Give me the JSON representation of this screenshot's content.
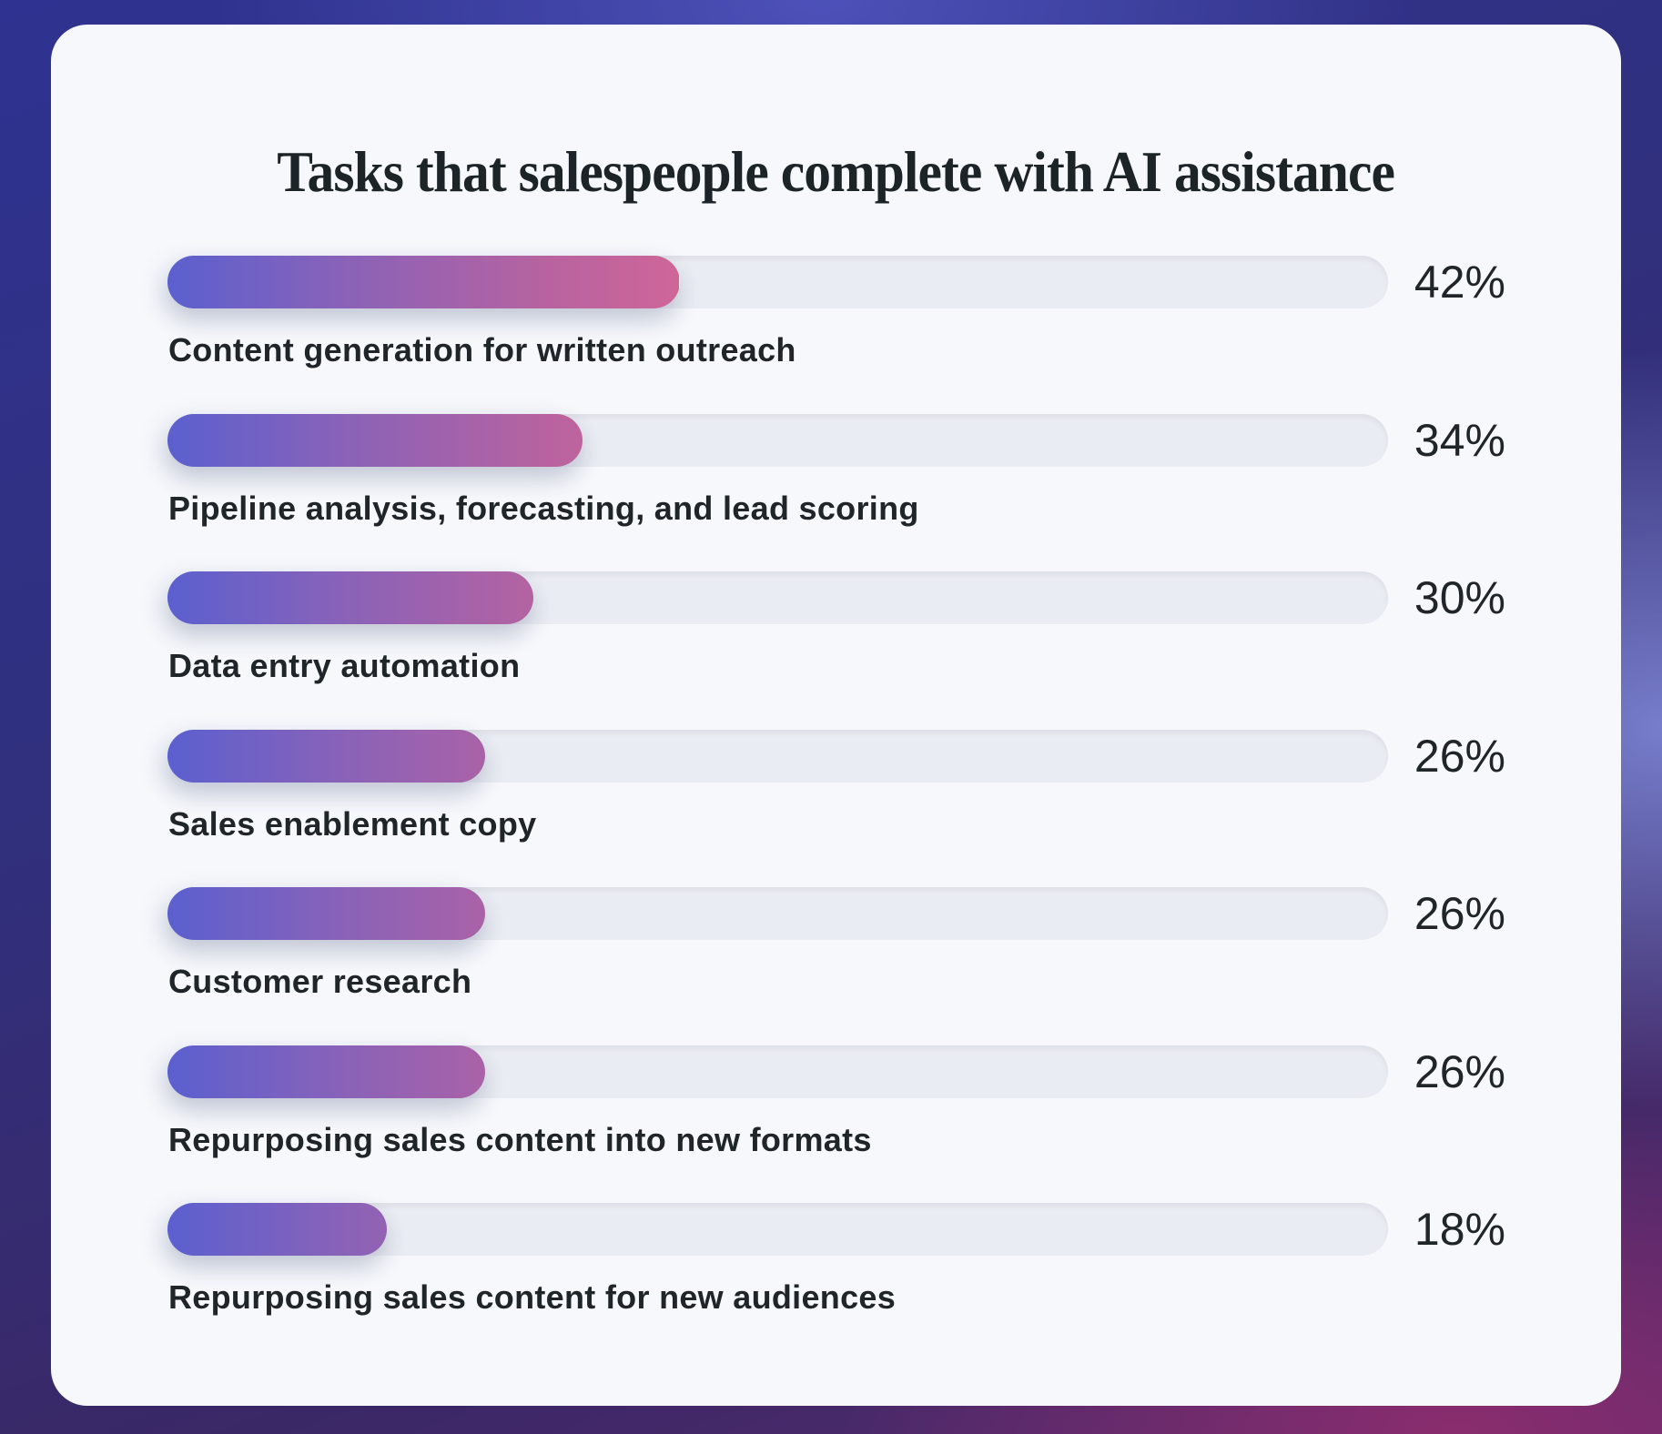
{
  "title": "Tasks that salespeople complete with AI assistance",
  "colors": {
    "bar_start": "#5b60cf",
    "bar_end": "#cf6699",
    "track": "#e9ecf2",
    "card": "#f6f8fc",
    "text": "#1f2529"
  },
  "rows": [
    {
      "label": "Content generation for written outreach",
      "value": "42%",
      "pct": 42
    },
    {
      "label": "Pipeline analysis, forecasting, and lead scoring",
      "value": "34%",
      "pct": 34
    },
    {
      "label": "Data entry automation",
      "value": "30%",
      "pct": 30
    },
    {
      "label": "Sales enablement copy",
      "value": "26%",
      "pct": 26
    },
    {
      "label": "Customer research",
      "value": "26%",
      "pct": 26
    },
    {
      "label": "Repurposing sales content into new formats",
      "value": "26%",
      "pct": 26
    },
    {
      "label": "Repurposing sales content for new audiences",
      "value": "18%",
      "pct": 18
    }
  ],
  "chart_data": {
    "type": "bar",
    "orientation": "horizontal",
    "title": "Tasks that salespeople complete with AI assistance",
    "categories": [
      "Content generation for written outreach",
      "Pipeline analysis, forecasting, and lead scoring",
      "Data entry automation",
      "Sales enablement copy",
      "Customer research",
      "Repurposing sales content into new formats",
      "Repurposing sales content for new audiences"
    ],
    "values": [
      42,
      34,
      30,
      26,
      26,
      26,
      18
    ],
    "unit": "%",
    "xlim": [
      0,
      100
    ],
    "xlabel": "",
    "ylabel": "",
    "grid": false,
    "legend": null,
    "data_labels": [
      "42%",
      "34%",
      "30%",
      "26%",
      "26%",
      "26%",
      "18%"
    ]
  }
}
